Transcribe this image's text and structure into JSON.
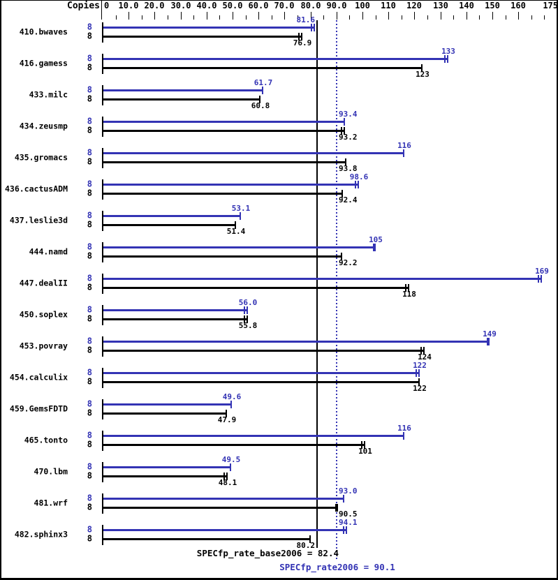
{
  "header": {
    "copies_label": "Copies"
  },
  "colors": {
    "peak": "#3333b4",
    "base": "#000000",
    "background": "#ffffff"
  },
  "chart_data": {
    "type": "bar",
    "orientation": "horizontal",
    "xlim": [
      0,
      175
    ],
    "grid": false,
    "axis_ticks": {
      "minor_step": 5,
      "major_step": 10
    },
    "axis_labels": [
      {
        "v": 0,
        "text": "0"
      },
      {
        "v": 10,
        "text": "10.0"
      },
      {
        "v": 20,
        "text": "20.0"
      },
      {
        "v": 30,
        "text": "30.0"
      },
      {
        "v": 40,
        "text": "40.0"
      },
      {
        "v": 50,
        "text": "50.0"
      },
      {
        "v": 60,
        "text": "60.0"
      },
      {
        "v": 70,
        "text": "70.0"
      },
      {
        "v": 80,
        "text": "80.0"
      },
      {
        "v": 90,
        "text": "90.0"
      },
      {
        "v": 100,
        "text": "100"
      },
      {
        "v": 110,
        "text": "110"
      },
      {
        "v": 120,
        "text": "120"
      },
      {
        "v": 130,
        "text": "130"
      },
      {
        "v": 140,
        "text": "140"
      },
      {
        "v": 150,
        "text": "150"
      },
      {
        "v": 160,
        "text": "160"
      },
      {
        "v": 175,
        "text": "175"
      }
    ],
    "series_names": [
      "peak",
      "base"
    ],
    "benchmarks": [
      {
        "name": "410.bwaves",
        "peak": {
          "copies": "8",
          "value": 81.6,
          "label": "81.6",
          "cap": "double"
        },
        "base": {
          "copies": "8",
          "value": 76.9,
          "label": "76.9",
          "cap": "double"
        }
      },
      {
        "name": "416.gamess",
        "peak": {
          "copies": "8",
          "value": 133,
          "label": "133",
          "cap": "double"
        },
        "base": {
          "copies": "8",
          "value": 123,
          "label": "123",
          "cap": "single"
        }
      },
      {
        "name": "433.milc",
        "peak": {
          "copies": "8",
          "value": 61.7,
          "label": "61.7",
          "cap": "single"
        },
        "base": {
          "copies": "8",
          "value": 60.8,
          "label": "60.8",
          "cap": "single"
        }
      },
      {
        "name": "434.zeusmp",
        "peak": {
          "copies": "8",
          "value": 93.4,
          "label": "93.4",
          "cap": "single"
        },
        "base": {
          "copies": "8",
          "value": 93.2,
          "label": "93.2",
          "cap": "double"
        }
      },
      {
        "name": "435.gromacs",
        "peak": {
          "copies": "8",
          "value": 116,
          "label": "116",
          "cap": "single"
        },
        "base": {
          "copies": "8",
          "value": 93.8,
          "label": "93.8",
          "cap": "single"
        }
      },
      {
        "name": "436.cactusADM",
        "peak": {
          "copies": "8",
          "value": 98.6,
          "label": "98.6",
          "cap": "double"
        },
        "base": {
          "copies": "8",
          "value": 92.4,
          "label": "92.4",
          "cap": "single"
        }
      },
      {
        "name": "437.leslie3d",
        "peak": {
          "copies": "8",
          "value": 53.1,
          "label": "53.1",
          "cap": "single"
        },
        "base": {
          "copies": "8",
          "value": 51.4,
          "label": "51.4",
          "cap": "single"
        }
      },
      {
        "name": "444.namd",
        "peak": {
          "copies": "8",
          "value": 105,
          "label": "105",
          "cap": "thick"
        },
        "base": {
          "copies": "8",
          "value": 92.2,
          "label": "92.2",
          "cap": "single"
        }
      },
      {
        "name": "447.dealII",
        "peak": {
          "copies": "8",
          "value": 169,
          "label": "169",
          "cap": "double"
        },
        "base": {
          "copies": "8",
          "value": 118,
          "label": "118",
          "cap": "double"
        }
      },
      {
        "name": "450.soplex",
        "peak": {
          "copies": "8",
          "value": 56.0,
          "label": "56.0",
          "cap": "double"
        },
        "base": {
          "copies": "8",
          "value": 55.8,
          "label": "55.8",
          "cap": "double"
        }
      },
      {
        "name": "453.povray",
        "peak": {
          "copies": "8",
          "value": 149,
          "label": "149",
          "cap": "thick"
        },
        "base": {
          "copies": "8",
          "value": 124,
          "label": "124",
          "cap": "double"
        }
      },
      {
        "name": "454.calculix",
        "peak": {
          "copies": "8",
          "value": 122,
          "label": "122",
          "cap": "double"
        },
        "base": {
          "copies": "8",
          "value": 122,
          "label": "122",
          "cap": "single"
        }
      },
      {
        "name": "459.GemsFDTD",
        "peak": {
          "copies": "8",
          "value": 49.6,
          "label": "49.6",
          "cap": "single"
        },
        "base": {
          "copies": "8",
          "value": 47.9,
          "label": "47.9",
          "cap": "single"
        }
      },
      {
        "name": "465.tonto",
        "peak": {
          "copies": "8",
          "value": 116,
          "label": "116",
          "cap": "single"
        },
        "base": {
          "copies": "8",
          "value": 101,
          "label": "101",
          "cap": "double"
        }
      },
      {
        "name": "470.lbm",
        "peak": {
          "copies": "8",
          "value": 49.5,
          "label": "49.5",
          "cap": "single"
        },
        "base": {
          "copies": "8",
          "value": 48.1,
          "label": "48.1",
          "cap": "double"
        }
      },
      {
        "name": "481.wrf",
        "peak": {
          "copies": "8",
          "value": 93.0,
          "label": "93.0",
          "cap": "single"
        },
        "base": {
          "copies": "8",
          "value": 90.5,
          "label": "90.5",
          "cap": "thick"
        }
      },
      {
        "name": "482.sphinx3",
        "peak": {
          "copies": "8",
          "value": 94.1,
          "label": "94.1",
          "cap": "double"
        },
        "base": {
          "copies": "8",
          "value": 80.2,
          "label": "80.2",
          "cap": "single"
        }
      }
    ],
    "reference_lines": {
      "base": {
        "value": 82.4,
        "label": "SPECfp_rate_base2006 = 82.4",
        "style": "solid",
        "color": "#000000"
      },
      "peak": {
        "value": 90.1,
        "label": "SPECfp_rate2006 = 90.1",
        "style": "dotted",
        "color": "#3333b4"
      }
    }
  }
}
